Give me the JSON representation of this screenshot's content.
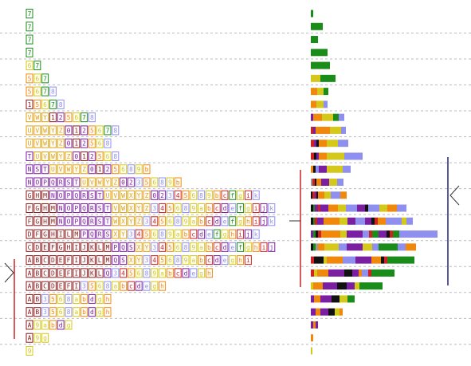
{
  "rows": [
    {
      "chars": [
        "7"
      ],
      "bar": [
        {
          "color": "#1a8c1a",
          "value": 3
        }
      ]
    },
    {
      "chars": [
        "7"
      ],
      "bar": [
        {
          "color": "#1a8c1a",
          "value": 15
        }
      ]
    },
    {
      "chars": [
        "7"
      ],
      "bar": [
        {
          "color": "#1a8c1a",
          "value": 9
        }
      ]
    },
    {
      "chars": [
        "7"
      ],
      "bar": [
        {
          "color": "#1a8c1a",
          "value": 21
        }
      ]
    },
    {
      "chars": [
        "6",
        "7"
      ],
      "bar": [
        {
          "color": "#1a8c1a",
          "value": 24
        }
      ]
    },
    {
      "chars": [
        "5",
        "6",
        "7"
      ],
      "bar": [
        {
          "color": "#d4c81a",
          "value": 12
        },
        {
          "color": "#1a8c1a",
          "value": 19
        }
      ]
    },
    {
      "chars": [
        "5",
        "6",
        "7",
        "8"
      ],
      "bar": [
        {
          "color": "#f0880c",
          "value": 8
        },
        {
          "color": "#d4c81a",
          "value": 8
        },
        {
          "color": "#1a8c1a",
          "value": 6
        }
      ]
    },
    {
      "chars": [
        "1",
        "5",
        "6",
        "7",
        "8"
      ],
      "bar": [
        {
          "color": "#f0880c",
          "value": 7
        },
        {
          "color": "#d4c81a",
          "value": 9
        },
        {
          "color": "#8f8fef",
          "value": 5
        }
      ]
    },
    {
      "chars": [
        "V",
        "W",
        "Y",
        "1",
        "2",
        "5",
        "6",
        "7",
        "8"
      ],
      "bar": [
        {
          "color": "#7b1fa2",
          "value": 3
        },
        {
          "color": "#f0880c",
          "value": 11
        },
        {
          "color": "#d4c81a",
          "value": 14
        },
        {
          "color": "#1a8c1a",
          "value": 7
        },
        {
          "color": "#8f8fef",
          "value": 7
        }
      ]
    },
    {
      "chars": [
        "U",
        "V",
        "W",
        "Y",
        "Z",
        "0",
        "1",
        "2",
        "5",
        "6",
        "7",
        "8"
      ],
      "bar": [
        {
          "color": "#cc2222",
          "value": 3
        },
        {
          "color": "#7b1fa2",
          "value": 3
        },
        {
          "color": "#f0880c",
          "value": 18
        },
        {
          "color": "#d4c81a",
          "value": 14
        },
        {
          "color": "#8f8fef",
          "value": 6
        }
      ]
    },
    {
      "chars": [
        "U",
        "V",
        "W",
        "Y",
        "Z",
        "0",
        "1",
        "2",
        "5",
        "6",
        "8"
      ],
      "bar": [
        {
          "color": "#cc2222",
          "value": 4
        },
        {
          "color": "#7b1fa2",
          "value": 3
        },
        {
          "color": "#111111",
          "value": 3
        },
        {
          "color": "#f0880c",
          "value": 10
        },
        {
          "color": "#d4c81a",
          "value": 14
        },
        {
          "color": "#8f8fef",
          "value": 13
        }
      ]
    },
    {
      "chars": [
        "T",
        "U",
        "V",
        "W",
        "Y",
        "Z",
        "0",
        "1",
        "2",
        "5",
        "6",
        "8"
      ],
      "bar": [
        {
          "color": "#cc2222",
          "value": 4
        },
        {
          "color": "#111111",
          "value": 3
        },
        {
          "color": "#7b1fa2",
          "value": 3
        },
        {
          "color": "#f0880c",
          "value": 10
        },
        {
          "color": "#d4c81a",
          "value": 22
        },
        {
          "color": "#8f8fef",
          "value": 23
        }
      ]
    },
    {
      "chars": [
        "N",
        "S",
        "T",
        "U",
        "V",
        "W",
        "Y",
        "Z",
        "0",
        "1",
        "2",
        "5",
        "6",
        "8",
        "9",
        "b"
      ],
      "bar": [
        {
          "color": "#f0880c",
          "value": 3
        },
        {
          "color": "#111111",
          "value": 3
        },
        {
          "color": "#8f8fef",
          "value": 4
        },
        {
          "color": "#7b1fa2",
          "value": 10
        },
        {
          "color": "#d4c81a",
          "value": 20
        },
        {
          "color": "#8f8fef",
          "value": 10
        }
      ]
    },
    {
      "chars": [
        "N",
        "O",
        "P",
        "Q",
        "R",
        "S",
        "T",
        "U",
        "V",
        "W",
        "Y",
        "Z",
        "0",
        "2",
        "3",
        "5",
        "6",
        "8",
        "9",
        "b"
      ],
      "bar": [
        {
          "color": "#999999",
          "value": 2
        },
        {
          "color": "#cc2222",
          "value": 3
        },
        {
          "color": "#111111",
          "value": 2
        },
        {
          "color": "#f0880c",
          "value": 6
        },
        {
          "color": "#7b1fa2",
          "value": 10
        },
        {
          "color": "#d4c81a",
          "value": 10
        },
        {
          "color": "#8f8fef",
          "value": 8
        }
      ]
    },
    {
      "chars": [
        "G",
        "H",
        "M",
        "N",
        "O",
        "P",
        "Q",
        "R",
        "S",
        "T",
        "U",
        "V",
        "W",
        "X",
        "Y",
        "Z",
        "0",
        "2",
        "3",
        "4",
        "5",
        "6",
        "8",
        "9",
        "b",
        "c",
        "f",
        "g",
        "i",
        "k"
      ],
      "bar": [
        {
          "color": "#111111",
          "value": 2
        },
        {
          "color": "#cc2222",
          "value": 3
        },
        {
          "color": "#7b1fa2",
          "value": 2
        },
        {
          "color": "#111111",
          "value": 2
        },
        {
          "color": "#f0880c",
          "value": 8
        },
        {
          "color": "#d4c81a",
          "value": 8
        },
        {
          "color": "#8f8fef",
          "value": 12
        },
        {
          "color": "#f0880c",
          "value": 8
        }
      ]
    },
    {
      "chars": [
        "F",
        "G",
        "H",
        "M",
        "N",
        "O",
        "P",
        "Q",
        "R",
        "S",
        "T",
        "V",
        "W",
        "X",
        "Y",
        "Z",
        "3",
        "4",
        "5",
        "6",
        "8",
        "9",
        "a",
        "b",
        "c",
        "d",
        "e",
        "f",
        "g",
        "i",
        "j",
        "k"
      ],
      "bar": [
        {
          "color": "#111111",
          "value": 3
        },
        {
          "color": "#1a8c1a",
          "value": 2
        },
        {
          "color": "#7b1fa2",
          "value": 4
        },
        {
          "color": "#cc2222",
          "value": 3
        },
        {
          "color": "#7b1fa2",
          "value": 10
        },
        {
          "color": "#f0880c",
          "value": 12
        },
        {
          "color": "#d4c81a",
          "value": 10
        },
        {
          "color": "#8f8fef",
          "value": 14
        },
        {
          "color": "#7b1fa2",
          "value": 10
        },
        {
          "color": "#111111",
          "value": 4
        },
        {
          "color": "#8f8fef",
          "value": 14
        },
        {
          "color": "#d4c81a",
          "value": 10
        },
        {
          "color": "#f0880c",
          "value": 12
        },
        {
          "color": "#8f8fef",
          "value": 12
        }
      ]
    },
    {
      "chars": [
        "F",
        "G",
        "H",
        "M",
        "N",
        "O",
        "P",
        "Q",
        "R",
        "S",
        "T",
        "W",
        "X",
        "Y",
        "Z",
        "3",
        "4",
        "5",
        "6",
        "8",
        "9",
        "a",
        "b",
        "c",
        "d",
        "e",
        "f",
        "g",
        "h",
        "i",
        "j",
        "k"
      ],
      "bar": [
        {
          "color": "#111111",
          "value": 3
        },
        {
          "color": "#1a8c1a",
          "value": 2
        },
        {
          "color": "#cc2222",
          "value": 3
        },
        {
          "color": "#7b1fa2",
          "value": 8
        },
        {
          "color": "#f0880c",
          "value": 20
        },
        {
          "color": "#d4c81a",
          "value": 10
        },
        {
          "color": "#7b1fa2",
          "value": 10
        },
        {
          "color": "#8f8fef",
          "value": 12
        },
        {
          "color": "#7b1fa2",
          "value": 8
        },
        {
          "color": "#111111",
          "value": 4
        },
        {
          "color": "#cc2222",
          "value": 4
        },
        {
          "color": "#f0880c",
          "value": 10
        },
        {
          "color": "#8f8fef",
          "value": 20
        },
        {
          "color": "#d4c81a",
          "value": 6
        },
        {
          "color": "#8f8fef",
          "value": 8
        }
      ]
    },
    {
      "chars": [
        "D",
        "F",
        "G",
        "H",
        "I",
        "L",
        "M",
        "P",
        "Q",
        "R",
        "S",
        "X",
        "Y",
        "3",
        "4",
        "5",
        "6",
        "8",
        "9",
        "a",
        "b",
        "c",
        "d",
        "e",
        "f",
        "g",
        "h",
        "i",
        "j",
        "k"
      ],
      "bar": [
        {
          "color": "#7b1fa2",
          "value": 3
        },
        {
          "color": "#1a8c1a",
          "value": 3
        },
        {
          "color": "#111111",
          "value": 3
        },
        {
          "color": "#cc2222",
          "value": 4
        },
        {
          "color": "#f0880c",
          "value": 24
        },
        {
          "color": "#d4c81a",
          "value": 8
        },
        {
          "color": "#7b1fa2",
          "value": 20
        },
        {
          "color": "#8f8fef",
          "value": 8
        },
        {
          "color": "#cc2222",
          "value": 4
        },
        {
          "color": "#1a8c1a",
          "value": 8
        },
        {
          "color": "#7b1fa2",
          "value": 10
        },
        {
          "color": "#111111",
          "value": 4
        },
        {
          "color": "#cc2222",
          "value": 4
        },
        {
          "color": "#1a8c1a",
          "value": 8
        },
        {
          "color": "#8f8fef",
          "value": 48
        }
      ]
    },
    {
      "chars": [
        "C",
        "D",
        "E",
        "F",
        "G",
        "H",
        "I",
        "J",
        "K",
        "L",
        "M",
        "P",
        "Q",
        "S",
        "X",
        "Y",
        "3",
        "4",
        "5",
        "6",
        "8",
        "9",
        "a",
        "b",
        "c",
        "d",
        "e",
        "f",
        "g",
        "h",
        "i",
        "j"
      ],
      "bar": [
        {
          "color": "#111111",
          "value": 3
        },
        {
          "color": "#1a8c1a",
          "value": 3
        },
        {
          "color": "#999999",
          "value": 3
        },
        {
          "color": "#f0880c",
          "value": 8
        },
        {
          "color": "#d4c81a",
          "value": 18
        },
        {
          "color": "#8f8fef",
          "value": 10
        },
        {
          "color": "#7b1fa2",
          "value": 20
        },
        {
          "color": "#d4c81a",
          "value": 12
        },
        {
          "color": "#8f8fef",
          "value": 8
        },
        {
          "color": "#1a8c1a",
          "value": 24
        },
        {
          "color": "#8f8fef",
          "value": 10
        },
        {
          "color": "#f0880c",
          "value": 13
        }
      ]
    },
    {
      "chars": [
        "A",
        "B",
        "C",
        "D",
        "E",
        "F",
        "I",
        "J",
        "K",
        "L",
        "M",
        "Q",
        "S",
        "X",
        "Y",
        "3",
        "4",
        "5",
        "6",
        "8",
        "9",
        "a",
        "b",
        "c",
        "d",
        "e",
        "g",
        "h",
        "i"
      ],
      "bar": [
        {
          "color": "#cc2222",
          "value": 4
        },
        {
          "color": "#111111",
          "value": 12
        },
        {
          "color": "#d4c81a",
          "value": 4
        },
        {
          "color": "#f0880c",
          "value": 20
        },
        {
          "color": "#8f8fef",
          "value": 16
        },
        {
          "color": "#7b1fa2",
          "value": 20
        },
        {
          "color": "#f0880c",
          "value": 12
        },
        {
          "color": "#111111",
          "value": 4
        },
        {
          "color": "#cc2222",
          "value": 4
        },
        {
          "color": "#1a8c1a",
          "value": 34
        }
      ]
    },
    {
      "chars": [
        "A",
        "B",
        "C",
        "D",
        "E",
        "F",
        "I",
        "J",
        "K",
        "L",
        "Q",
        "3",
        "4",
        "5",
        "6",
        "8",
        "9",
        "a",
        "b",
        "c",
        "d",
        "e",
        "g",
        "h"
      ],
      "bar": [
        {
          "color": "#cc2222",
          "value": 4
        },
        {
          "color": "#d4c81a",
          "value": 4
        },
        {
          "color": "#f0880c",
          "value": 14
        },
        {
          "color": "#7b1fa2",
          "value": 20
        },
        {
          "color": "#111111",
          "value": 10
        },
        {
          "color": "#7b1fa2",
          "value": 8
        },
        {
          "color": "#f0880c",
          "value": 4
        },
        {
          "color": "#8f8fef",
          "value": 8
        },
        {
          "color": "#cc2222",
          "value": 4
        },
        {
          "color": "#1a8c1a",
          "value": 29
        }
      ]
    },
    {
      "chars": [
        "A",
        "B",
        "C",
        "D",
        "E",
        "F",
        "I",
        "3",
        "5",
        "6",
        "8",
        "a",
        "b",
        "c",
        "d",
        "e",
        "g",
        "h"
      ],
      "bar": [
        {
          "color": "#d4c81a",
          "value": 3
        },
        {
          "color": "#f0880c",
          "value": 12
        },
        {
          "color": "#7b1fa2",
          "value": 8
        },
        {
          "color": "#7b1fa2",
          "value": 10
        },
        {
          "color": "#111111",
          "value": 12
        },
        {
          "color": "#7b1fa2",
          "value": 10
        },
        {
          "color": "#d4c81a",
          "value": 6
        },
        {
          "color": "#1a8c1a",
          "value": 29
        }
      ]
    },
    {
      "chars": [
        "A",
        "B",
        "3",
        "5",
        "6",
        "8",
        "a",
        "b",
        "d",
        "g",
        "h"
      ],
      "bar": [
        {
          "color": "#7b1fa2",
          "value": 4
        },
        {
          "color": "#f0880c",
          "value": 8
        },
        {
          "color": "#7b1fa2",
          "value": 14
        },
        {
          "color": "#111111",
          "value": 10
        },
        {
          "color": "#d4c81a",
          "value": 10
        },
        {
          "color": "#1a8c1a",
          "value": 9
        }
      ]
    },
    {
      "chars": [
        "A",
        "B",
        "3",
        "5",
        "6",
        "8",
        "a",
        "b",
        "d",
        "g",
        "h"
      ],
      "bar": [
        {
          "color": "#7b1fa2",
          "value": 6
        },
        {
          "color": "#f0880c",
          "value": 6
        },
        {
          "color": "#7b1fa2",
          "value": 10
        },
        {
          "color": "#111111",
          "value": 8
        },
        {
          "color": "#d4c81a",
          "value": 6
        },
        {
          "color": "#f0880c",
          "value": 4
        }
      ]
    },
    {
      "chars": [
        "A",
        "9",
        "a",
        "b",
        "d",
        "g"
      ],
      "bar": [
        {
          "color": "#7b1fa2",
          "value": 3
        },
        {
          "color": "#f0880c",
          "value": 3
        },
        {
          "color": "#7b1fa2",
          "value": 3
        }
      ]
    },
    {
      "chars": [
        "A",
        "9",
        "g"
      ],
      "bar": [
        {
          "color": "#f0880c",
          "value": 3
        }
      ]
    },
    {
      "chars": [
        "9"
      ],
      "bar": [
        {
          "color": "#d4c81a",
          "value": 2
        }
      ]
    }
  ],
  "xlim": [
    0,
    200
  ]
}
